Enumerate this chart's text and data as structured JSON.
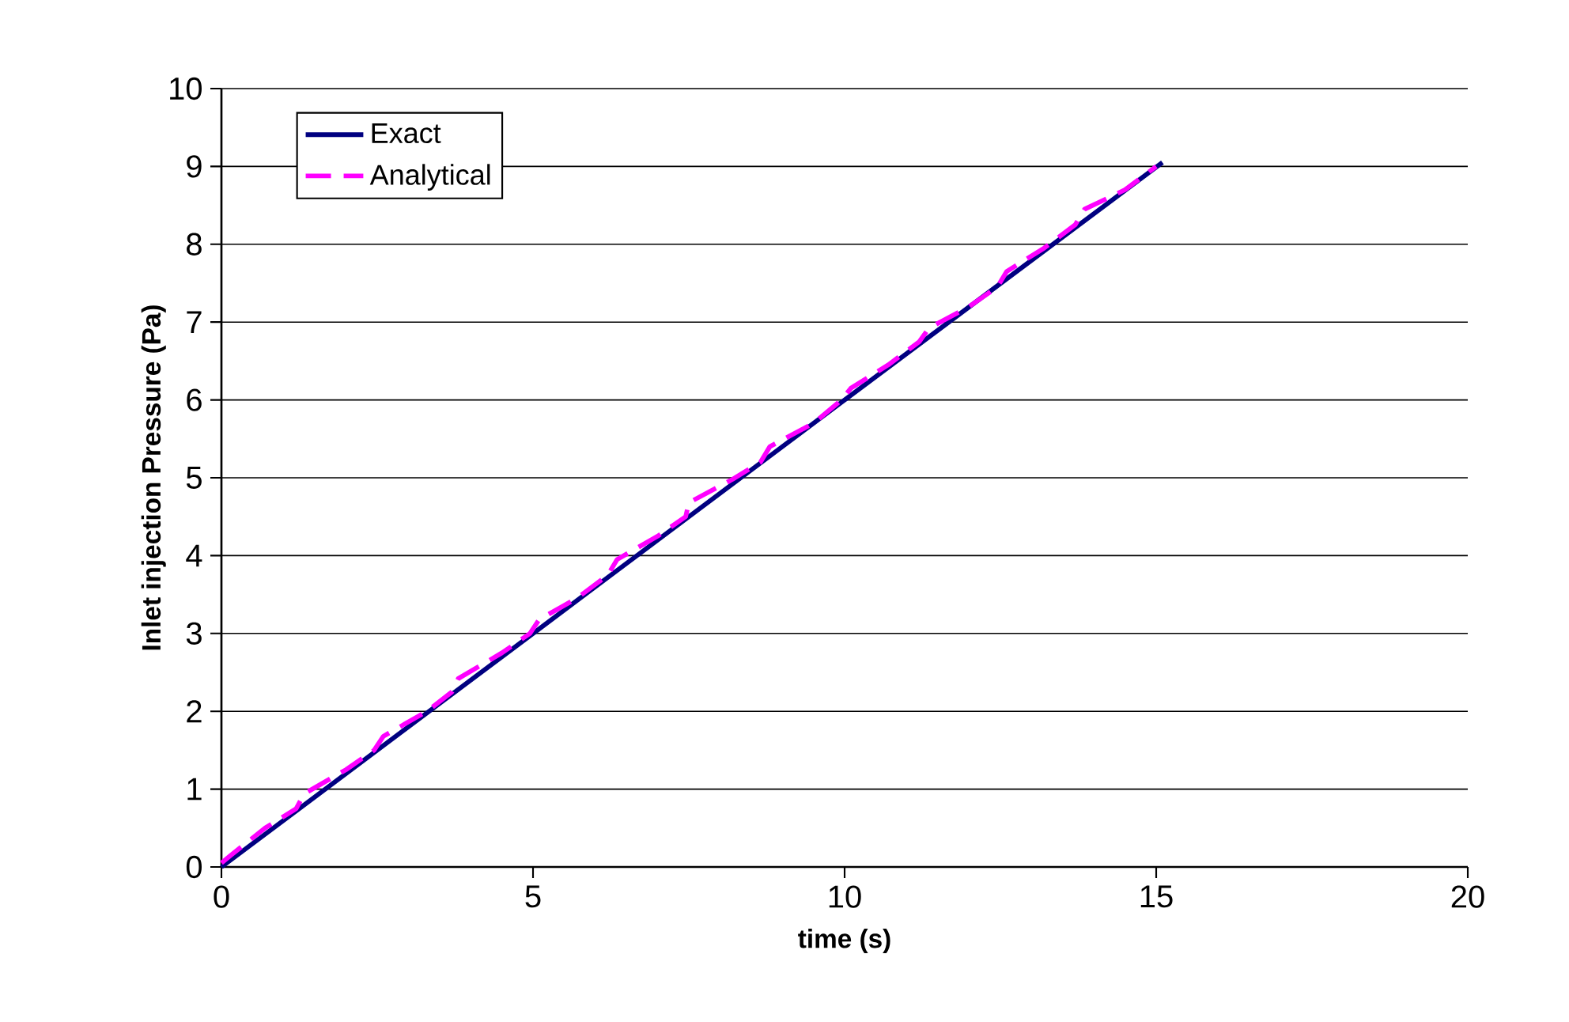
{
  "chart_data": {
    "type": "line",
    "xlabel": "time (s)",
    "ylabel": "Inlet injection Pressure (Pa)",
    "xlim": [
      0,
      20
    ],
    "ylim": [
      0,
      10
    ],
    "xticks": [
      0,
      5,
      10,
      15,
      20
    ],
    "yticks": [
      0,
      1,
      2,
      3,
      4,
      5,
      6,
      7,
      8,
      9,
      10
    ],
    "grid": "y",
    "legend": "top left",
    "marker": "none",
    "series": [
      {
        "name": "Exact",
        "color": "#000080",
        "line_style": "solid",
        "x": [
          0,
          5,
          10,
          15.1
        ],
        "values": [
          0,
          3.0,
          6.0,
          9.05
        ]
      },
      {
        "name": "Analytical",
        "color": "#ff00ff",
        "line_style": "dashed",
        "x": [
          0,
          0.15,
          0.7,
          1.2,
          1.3,
          1.35,
          2.0,
          2.45,
          2.6,
          3.3,
          3.7,
          3.8,
          4.5,
          4.95,
          5.1,
          5.7,
          6.2,
          6.35,
          7.0,
          7.45,
          7.5,
          8.2,
          8.65,
          8.8,
          9.5,
          9.95,
          10.1,
          10.7,
          11.2,
          11.35,
          12.0,
          12.45,
          12.6,
          13.2,
          13.7,
          13.85,
          14.5,
          15.0
        ],
        "values": [
          0.05,
          0.15,
          0.5,
          0.75,
          0.9,
          0.95,
          1.25,
          1.5,
          1.68,
          2.0,
          2.25,
          2.42,
          2.75,
          3.0,
          3.18,
          3.45,
          3.75,
          3.95,
          4.25,
          4.5,
          4.68,
          4.98,
          5.2,
          5.4,
          5.7,
          6.0,
          6.15,
          6.45,
          6.75,
          6.92,
          7.2,
          7.45,
          7.65,
          7.95,
          8.25,
          8.45,
          8.7,
          9.0
        ]
      }
    ]
  }
}
